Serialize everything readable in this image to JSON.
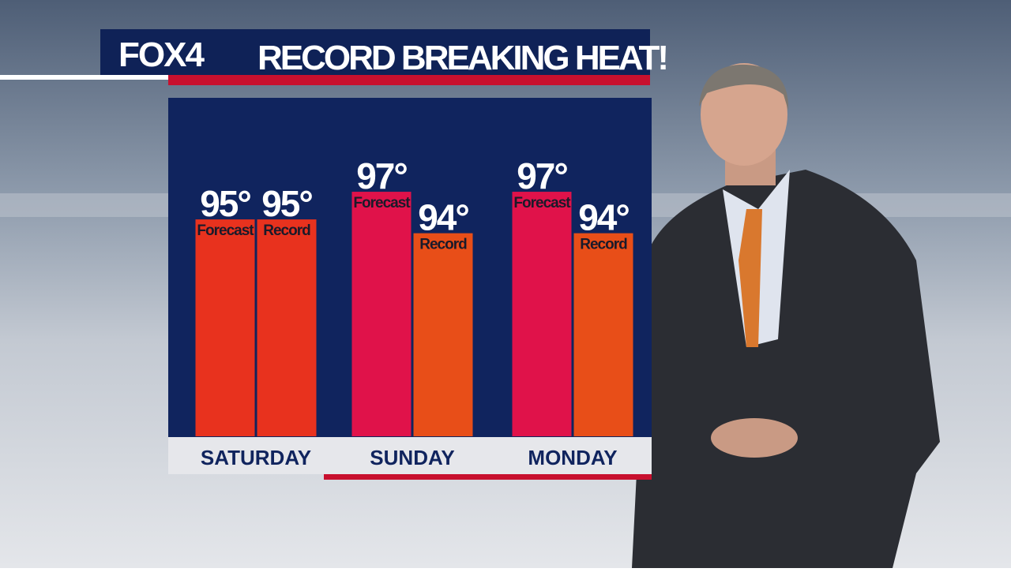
{
  "logo": "FOX4",
  "chart_data": {
    "type": "bar",
    "title": "RECORD BREAKING HEAT!",
    "categories": [
      "SATURDAY",
      "SUNDAY",
      "MONDAY"
    ],
    "series": [
      {
        "name": "Forecast",
        "colors": [
          "#e8321e",
          "#e0124a",
          "#e0124a"
        ],
        "values": [
          95,
          97,
          97
        ],
        "value_labels": [
          "95°",
          "97°",
          "97°"
        ]
      },
      {
        "name": "Record",
        "colors": [
          "#e8321e",
          "#e84e18",
          "#e84e18"
        ],
        "values": [
          95,
          94,
          94
        ],
        "value_labels": [
          "95°",
          "94°",
          "94°"
        ]
      }
    ],
    "ylim": [
      79.3,
      103.8
    ]
  }
}
